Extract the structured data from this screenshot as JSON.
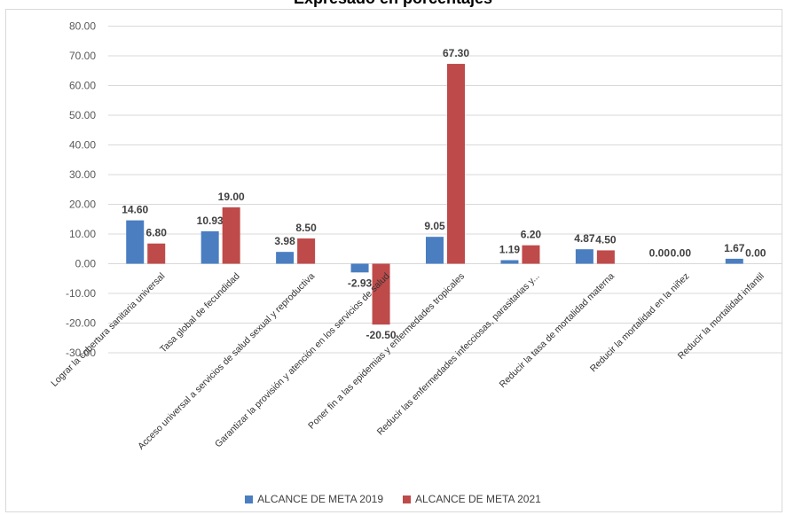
{
  "chart_data": {
    "type": "bar",
    "title": "Expresado en porcentajes",
    "categories": [
      "Lograr la cobertura sanitaria universal",
      "Tasa global de fecundidad",
      "Acceso universal a servicios de salud sexual y reproductiva",
      "Garantizar la provisión y atención en los servicios de salud",
      "Poner fin a las epidemias y enfermedades tropicales",
      "Reducir las enfermedades infecciosas, parasitarias y...",
      "Reducir la tasa de mortalidad materna",
      "Reducir la mortalidad en la niñez",
      "Reducir la mortalidad infantil"
    ],
    "series": [
      {
        "name": "ALCANCE DE META 2019",
        "color": "#4a7ec1",
        "values": [
          14.6,
          10.93,
          3.98,
          -2.93,
          9.05,
          1.19,
          4.87,
          0.0,
          1.67
        ],
        "labels": [
          "14.60",
          "10.93",
          "3.98",
          "-2.93",
          "9.05",
          "1.19",
          "4.87",
          "0.00",
          "1.67"
        ]
      },
      {
        "name": "ALCANCE DE META 2021",
        "color": "#bf4a4a",
        "values": [
          6.8,
          19.0,
          8.5,
          -20.5,
          67.3,
          6.2,
          4.5,
          0.0,
          0.0
        ],
        "labels": [
          "6.80",
          "19.00",
          "8.50",
          "-20.50",
          "67.30",
          "6.20",
          "4.50",
          "0.00",
          "0.00"
        ]
      }
    ],
    "ylim": [
      -30,
      80
    ],
    "yticks": [
      "80.00",
      "70.00",
      "60.00",
      "50.00",
      "40.00",
      "30.00",
      "20.00",
      "10.00",
      "0.00",
      "-10.00",
      "-20.00",
      "-30.00"
    ],
    "grid": true,
    "legend_position": "bottom"
  }
}
